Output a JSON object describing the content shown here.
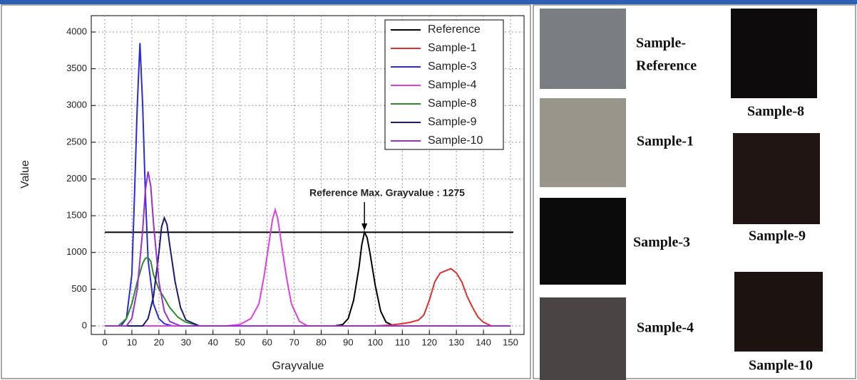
{
  "chart_data": {
    "type": "line",
    "xlabel": "Grayvalue",
    "ylabel": "Value",
    "xlim": [
      0,
      150
    ],
    "xticks": [
      0,
      10,
      20,
      30,
      40,
      50,
      60,
      70,
      80,
      90,
      100,
      110,
      120,
      130,
      140,
      150
    ],
    "ylim": [
      0,
      4000
    ],
    "yticks": [
      0,
      500,
      1000,
      1500,
      2000,
      2500,
      3000,
      3500,
      4000
    ],
    "grid": true,
    "legend": "upper right",
    "reference_line": 1275,
    "annotation": "Reference Max. Grayvalue : 1275",
    "series": [
      {
        "name": "Reference",
        "color": "#000000",
        "x": [
          0,
          85,
          88,
          90,
          92,
          94,
          95,
          96,
          97,
          98,
          100,
          102,
          104,
          107,
          150
        ],
        "values": [
          0,
          0,
          20,
          100,
          350,
          800,
          1100,
          1275,
          1200,
          1000,
          550,
          200,
          50,
          0,
          0
        ]
      },
      {
        "name": "Sample-1",
        "color": "#e03030",
        "x": [
          0,
          100,
          105,
          110,
          113,
          116,
          118,
          120,
          122,
          124,
          126,
          128,
          130,
          132,
          134,
          136,
          138,
          140,
          143,
          150
        ],
        "values": [
          0,
          0,
          10,
          30,
          50,
          80,
          150,
          350,
          600,
          720,
          750,
          780,
          720,
          600,
          400,
          250,
          120,
          50,
          0,
          0
        ]
      },
      {
        "name": "Sample-3",
        "color": "#2a2ae0",
        "x": [
          0,
          6,
          8,
          10,
          11,
          12,
          13,
          14,
          15,
          16,
          18,
          20,
          22,
          25,
          150
        ],
        "values": [
          0,
          0,
          100,
          700,
          1800,
          3000,
          3850,
          3000,
          1800,
          900,
          300,
          100,
          30,
          0,
          0
        ]
      },
      {
        "name": "Sample-4",
        "color": "#e040e0",
        "x": [
          0,
          45,
          50,
          54,
          57,
          59,
          61,
          62,
          63,
          64,
          65,
          67,
          69,
          72,
          75,
          150
        ],
        "values": [
          0,
          0,
          20,
          100,
          300,
          700,
          1200,
          1450,
          1580,
          1450,
          1200,
          700,
          300,
          60,
          0,
          0
        ]
      },
      {
        "name": "Sample-8",
        "color": "#2e8b2e",
        "x": [
          0,
          5,
          8,
          10,
          12,
          14,
          15,
          16,
          17,
          18,
          20,
          22,
          24,
          27,
          30,
          35,
          150
        ],
        "values": [
          0,
          0,
          100,
          300,
          600,
          850,
          920,
          930,
          880,
          700,
          500,
          380,
          250,
          120,
          50,
          0,
          0
        ]
      },
      {
        "name": "Sample-9",
        "color": "#1a1a7a",
        "x": [
          0,
          14,
          16,
          18,
          20,
          21,
          22,
          23,
          24,
          26,
          28,
          30,
          35,
          150
        ],
        "values": [
          0,
          0,
          100,
          400,
          1000,
          1350,
          1470,
          1380,
          1100,
          600,
          250,
          80,
          0,
          0
        ]
      },
      {
        "name": "Sample-10",
        "color": "#9a30d0",
        "x": [
          0,
          8,
          10,
          12,
          14,
          15,
          16,
          17,
          18,
          20,
          22,
          24,
          28,
          150
        ],
        "values": [
          0,
          0,
          100,
          500,
          1300,
          1850,
          2100,
          1900,
          1400,
          600,
          200,
          60,
          0,
          0
        ]
      }
    ]
  },
  "samples": [
    {
      "label_lines": [
        "Sample-",
        "Reference"
      ],
      "color": "#7a7d82"
    },
    {
      "label_lines": [
        "Sample-1"
      ],
      "color": "#9a958a"
    },
    {
      "label_lines": [
        "Sample-3"
      ],
      "color": "#0c0b0c"
    },
    {
      "label_lines": [
        "Sample-4"
      ],
      "color": "#4a4544"
    },
    {
      "label_lines": [
        "Sample-8"
      ],
      "color": "#0d0b0c"
    },
    {
      "label_lines": [
        "Sample-9"
      ],
      "color": "#201512"
    },
    {
      "label_lines": [
        "Sample-10"
      ],
      "color": "#1c1210"
    }
  ]
}
